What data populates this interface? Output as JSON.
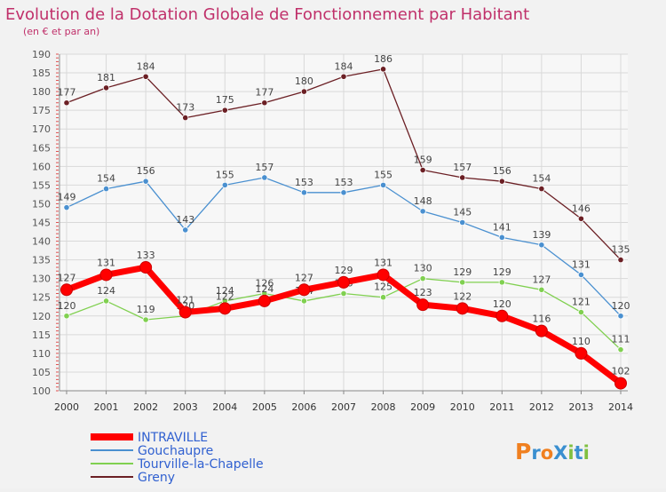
{
  "chart_data": {
    "type": "line",
    "title": "Evolution de la Dotation Globale de Fonctionnement par Habitant",
    "subtitle": "(en € et par an)",
    "xlabel": "",
    "ylabel": "",
    "ylim": [
      100,
      190
    ],
    "y_ticks": [
      100,
      105,
      110,
      115,
      120,
      125,
      130,
      135,
      140,
      145,
      150,
      155,
      160,
      165,
      170,
      175,
      180,
      185,
      190
    ],
    "grid": true,
    "legend_position": "bottom-left",
    "categories": [
      "2000",
      "2001",
      "2002",
      "2003",
      "2004",
      "2005",
      "2006",
      "2007",
      "2008",
      "2009",
      "2010",
      "2011",
      "2012",
      "2013",
      "2014"
    ],
    "series": [
      {
        "name": "Greny",
        "color": "#6b1f24",
        "values": [
          177,
          181,
          184,
          173,
          175,
          177,
          180,
          184,
          186,
          159,
          157,
          156,
          154,
          146,
          135
        ]
      },
      {
        "name": "Gouchaupre",
        "color": "#4a90d0",
        "values": [
          149,
          154,
          156,
          143,
          155,
          157,
          153,
          153,
          155,
          148,
          145,
          141,
          139,
          131,
          120
        ]
      },
      {
        "name": "Tourville-la-Chapelle",
        "color": "#80d050",
        "values": [
          120,
          124,
          119,
          120,
          124,
          126,
          124,
          126,
          125,
          130,
          129,
          129,
          127,
          121,
          111
        ]
      },
      {
        "name": "INTRAVILLE",
        "color": "#ff0000",
        "values": [
          127,
          131,
          133,
          121,
          122,
          124,
          127,
          129,
          131,
          123,
          122,
          120,
          116,
          110,
          102
        ]
      }
    ]
  },
  "legend": [
    {
      "name": "INTRAVILLE",
      "color": "#ff0000"
    },
    {
      "name": "Gouchaupre",
      "color": "#4a90d0"
    },
    {
      "name": "Tourville-la-Chapelle",
      "color": "#80d050"
    },
    {
      "name": "Greny",
      "color": "#6b1f24"
    }
  ],
  "logo": {
    "text": "ProXiti"
  }
}
